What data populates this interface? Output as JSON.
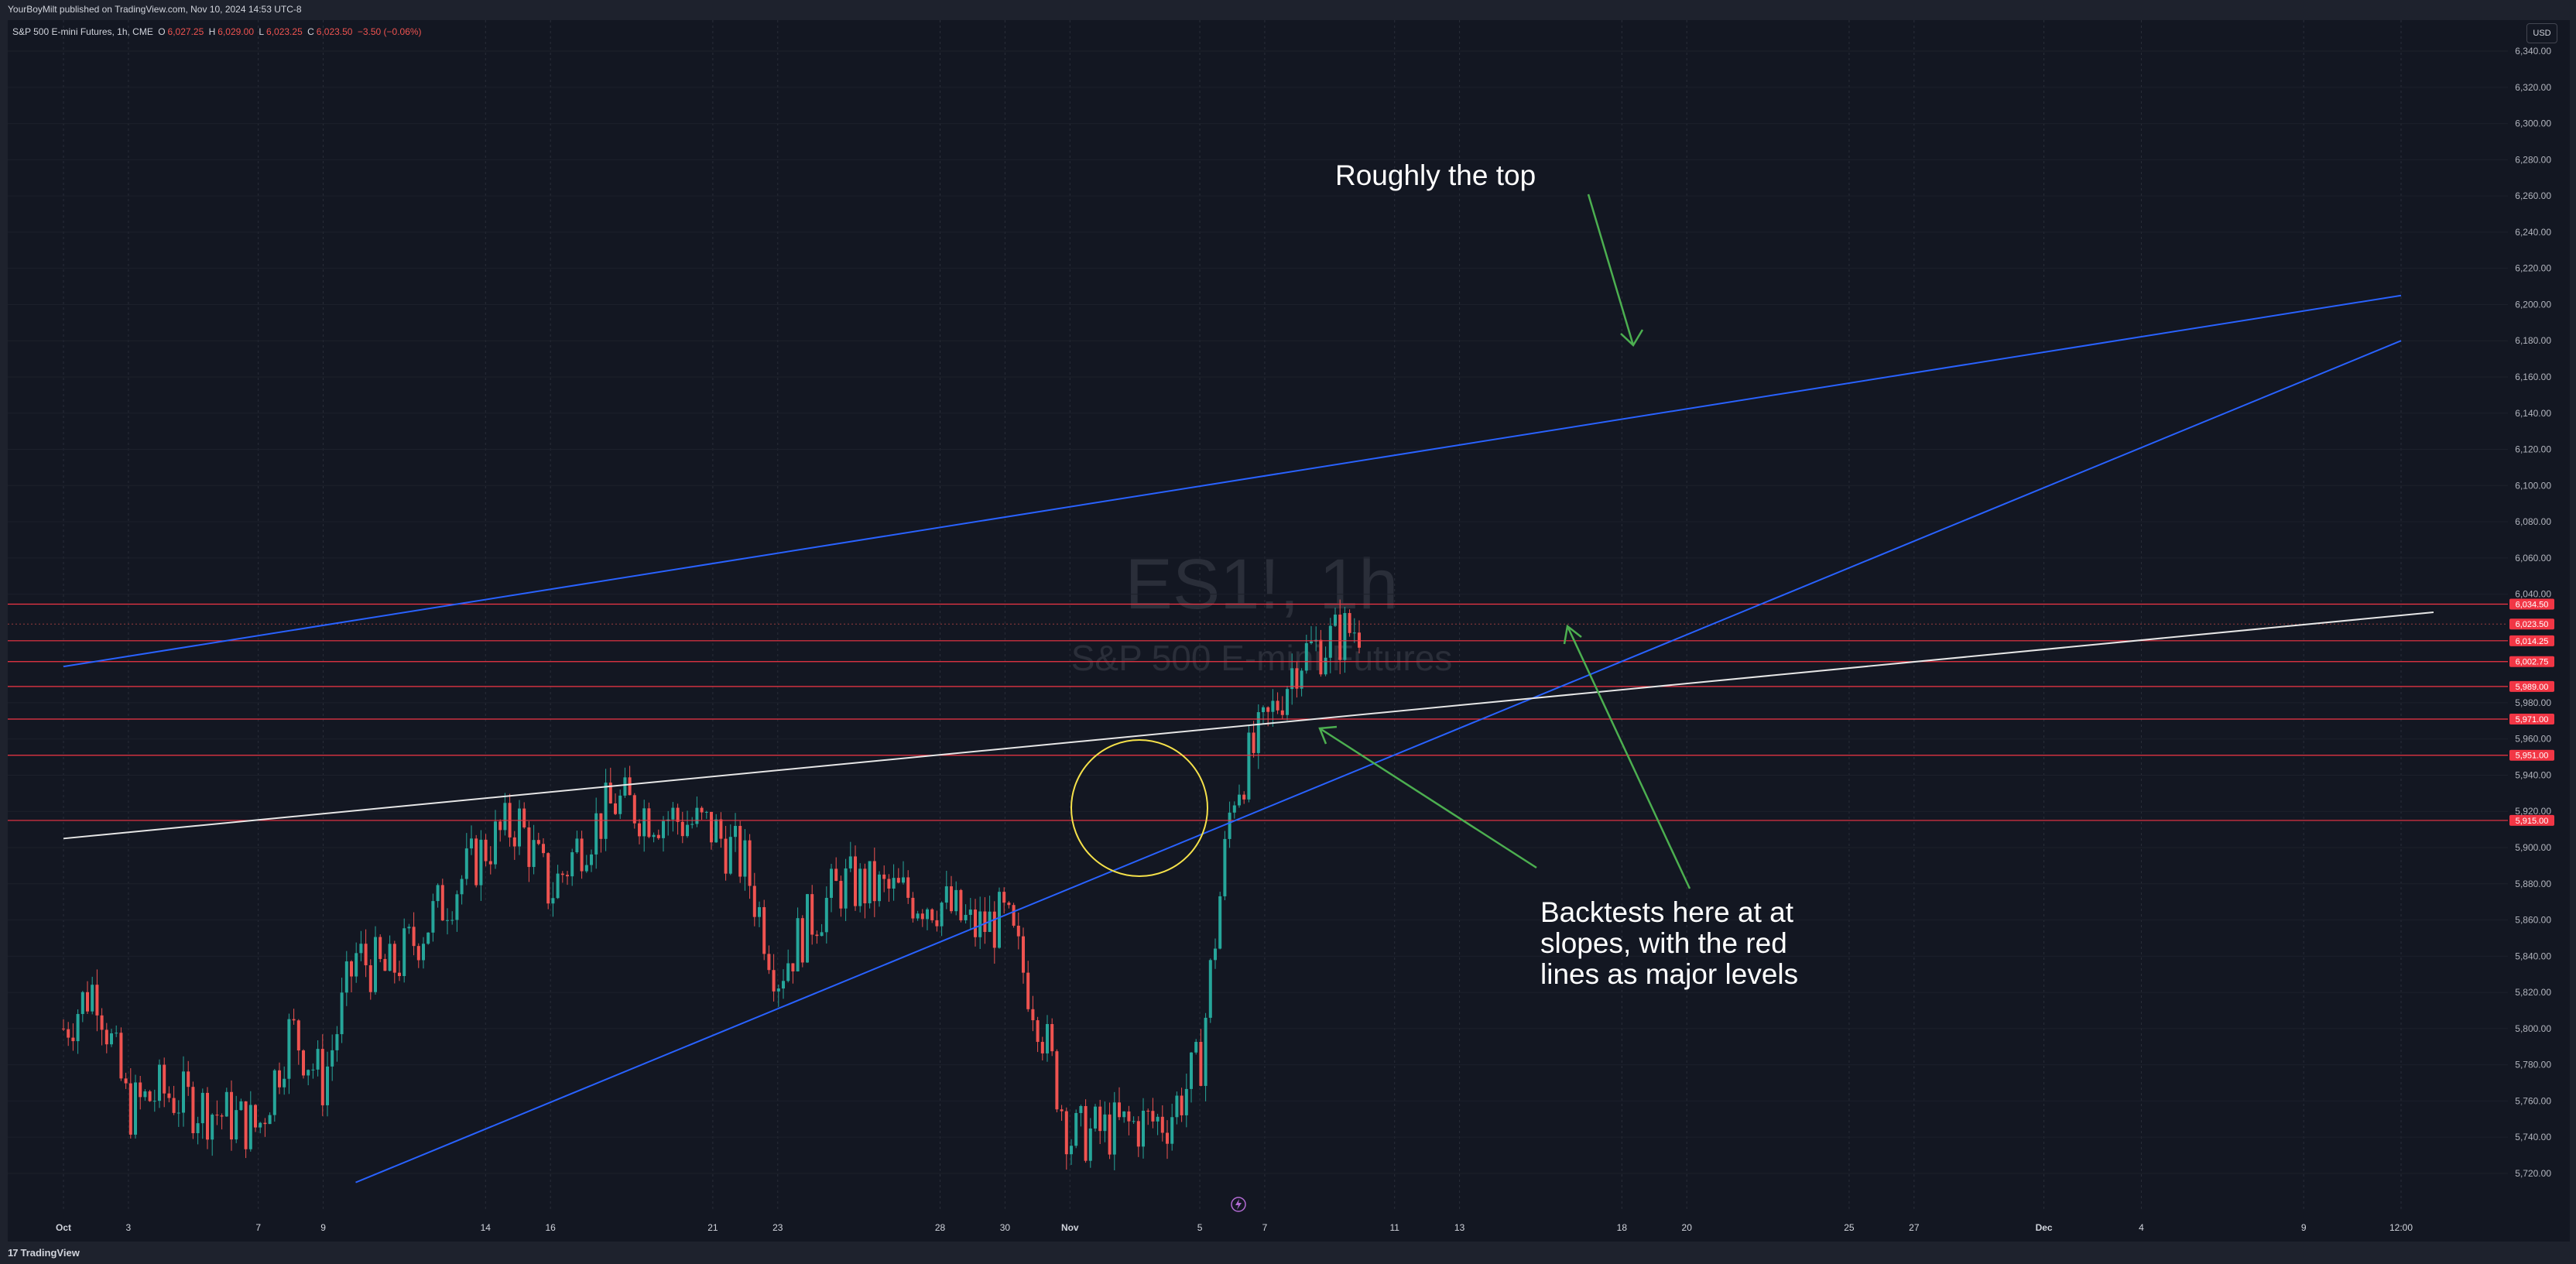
{
  "header": {
    "published": "YourBoyMilt published on TradingView.com, Nov 10, 2024 14:53 UTC-8"
  },
  "legend": {
    "symbol": "S&P 500 E-mini Futures, 1h, CME",
    "open_label": "O",
    "open": "6,027.25",
    "high_label": "H",
    "high": "6,029.00",
    "low_label": "L",
    "low": "6,023.25",
    "close_label": "C",
    "close": "6,023.50",
    "change": "−3.50 (−0.06%)"
  },
  "currency_button": "USD",
  "footer": {
    "brand": "TradingView",
    "brand_mark": "17"
  },
  "colors": {
    "background": "#131722",
    "frame": "#1e222d",
    "up": "#26a69a",
    "down": "#ef5350",
    "blue_line": "#2962ff",
    "white_line": "#e6e6e6",
    "red_level": "#f23645",
    "annotation_arrow": "#4caf50",
    "circle": "#f5e14a"
  },
  "chart_data": {
    "type": "candlestick",
    "watermark_symbol": "ES1!, 1h",
    "watermark_name": "S&P 500 E-mini Futures",
    "ylim": [
      5708,
      6352
    ],
    "y_ticks": [
      5720,
      5740,
      5760,
      5780,
      5800,
      5820,
      5840,
      5860,
      5880,
      5900,
      5920,
      5940,
      5960,
      5980,
      6040,
      6060,
      6080,
      6100,
      6120,
      6140,
      6160,
      6180,
      6200,
      6220,
      6240,
      6260,
      6280,
      6300,
      6320,
      6340
    ],
    "y_tick_labels": [
      "5,720.00",
      "5,740.00",
      "5,760.00",
      "5,780.00",
      "5,800.00",
      "5,820.00",
      "5,840.00",
      "5,860.00",
      "5,880.00",
      "5,900.00",
      "5,920.00",
      "5,940.00",
      "5,960.00",
      "5,980.00",
      "6,040.00",
      "6,060.00",
      "6,080.00",
      "6,100.00",
      "6,120.00",
      "6,140.00",
      "6,160.00",
      "6,180.00",
      "6,200.00",
      "6,220.00",
      "6,240.00",
      "6,260.00",
      "6,280.00",
      "6,300.00",
      "6,320.00",
      "6,340.00"
    ],
    "x_labels": [
      "Oct",
      "3",
      "7",
      "9",
      "14",
      "16",
      "21",
      "23",
      "28",
      "30",
      "Nov",
      "5",
      "7",
      "11",
      "13",
      "18",
      "20",
      "25",
      "27",
      "Dec",
      "4",
      "9",
      "12:00"
    ],
    "x_label_bold": [
      "Oct",
      "Nov",
      "Dec"
    ],
    "price_levels": [
      {
        "value": 6034.5,
        "label": "6,034.50"
      },
      {
        "value": 6014.25,
        "label": "6,014.25"
      },
      {
        "value": 6002.75,
        "label": "6,002.75"
      },
      {
        "value": 5989.0,
        "label": "5,989.00"
      },
      {
        "value": 5971.0,
        "label": "5,971.00"
      },
      {
        "value": 5951.0,
        "label": "5,951.00"
      },
      {
        "value": 5915.0,
        "label": "5,915.00"
      }
    ],
    "last_price": {
      "value": 6023.5,
      "label": "6,023.50"
    },
    "price_path": [
      [
        "Oct 1",
        5800
      ],
      [
        "Oct 2",
        5825
      ],
      [
        "Oct 3",
        5755
      ],
      [
        "Oct 4",
        5765
      ],
      [
        "Oct 7",
        5745
      ],
      [
        "Oct 8",
        5800
      ],
      [
        "Oct 9",
        5770
      ],
      [
        "Oct 10",
        5840
      ],
      [
        "Oct 11",
        5830
      ],
      [
        "Oct 14",
        5900
      ],
      [
        "Oct 15",
        5915
      ],
      [
        "Oct 16",
        5875
      ],
      [
        "Oct 17",
        5905
      ],
      [
        "Oct 18",
        5925
      ],
      [
        "Oct 21",
        5910
      ],
      [
        "Oct 22",
        5890
      ],
      [
        "Oct 23",
        5830
      ],
      [
        "Oct 24",
        5860
      ],
      [
        "Oct 25",
        5880
      ],
      [
        "Oct 28",
        5870
      ],
      [
        "Oct 29",
        5855
      ],
      [
        "Oct 30",
        5860
      ],
      [
        "Oct 31",
        5810
      ],
      [
        "Nov 1",
        5740
      ],
      [
        "Nov 4",
        5750
      ],
      [
        "Nov 5",
        5780
      ],
      [
        "Nov 6",
        5930
      ],
      [
        "Nov 7",
        5965
      ],
      [
        "Nov 8",
        6005
      ],
      [
        "Nov 10",
        6023.5
      ]
    ],
    "trend_lines": [
      {
        "name": "upper-channel",
        "color": "blue",
        "from": [
          "Oct 1",
          6000
        ],
        "to": [
          "Dec 12",
          6205
        ]
      },
      {
        "name": "rising-support",
        "color": "blue",
        "from": [
          "Oct 10",
          5715
        ],
        "to": [
          "Dec 12",
          6180
        ]
      },
      {
        "name": "resistance-slope",
        "color": "white",
        "from": [
          "Oct 1",
          5905
        ],
        "to": [
          "Dec 13",
          6030
        ]
      }
    ],
    "annotations": [
      {
        "text": "Roughly the top"
      },
      {
        "text": "Backtests here at at slopes, with the red lines as major levels"
      }
    ],
    "annotation_lines": {
      "top": "Roughly the top",
      "bottom_1": "Backtests here at at",
      "bottom_2": "slopes, with the red",
      "bottom_3": "lines as major levels"
    },
    "highlight": {
      "type": "circle",
      "around": "Nov 6 breakout"
    }
  }
}
